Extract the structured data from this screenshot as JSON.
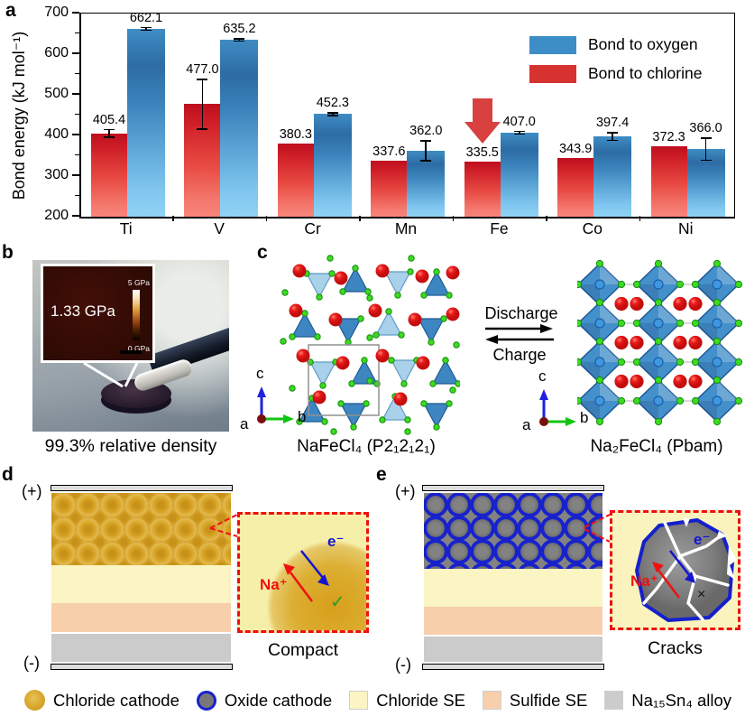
{
  "figure": {
    "panel_letters": {
      "a": "a",
      "b": "b",
      "c": "c",
      "d": "d",
      "e": "e"
    }
  },
  "chart_data": {
    "type": "bar",
    "title": "",
    "ylabel": "Bond energy (kJ mol⁻¹)",
    "ylim": [
      200,
      700
    ],
    "yticks": [
      200,
      300,
      400,
      500,
      600,
      700
    ],
    "categories": [
      "Ti",
      "V",
      "Cr",
      "Mn",
      "Fe",
      "Co",
      "Ni"
    ],
    "series": [
      {
        "name": "Bond to oxygen",
        "color": "#3d8ec6",
        "values": [
          662.1,
          635.2,
          452.3,
          362.0,
          407.0,
          397.4,
          366.0
        ],
        "errors": [
          5,
          5,
          5,
          26,
          5,
          11,
          29
        ]
      },
      {
        "name": "Bond to chlorine",
        "color": "#d63230",
        "values": [
          405.4,
          477.0,
          380.3,
          337.6,
          335.5,
          343.9,
          372.3
        ],
        "errors": [
          11,
          63,
          0,
          0,
          0,
          0,
          0
        ]
      }
    ],
    "annotation": {
      "shape": "down-arrow",
      "category": "Fe",
      "color": "#d94040"
    },
    "legend_position": "top-right",
    "grid": false
  },
  "panel_b": {
    "inset_value": "1.33 GPa",
    "scale_top": "5 GPa",
    "scale_bottom": "0 GPa",
    "caption": "99.3% relative density"
  },
  "panel_c": {
    "left_structure": "NaFeCl₄ (P2₁2₁2₁)",
    "right_structure": "Na₂FeCl₄ (Pbam)",
    "arrow_forward": "Discharge",
    "arrow_backward": "Charge",
    "axes": {
      "a": "a",
      "b": "b",
      "c": "c"
    }
  },
  "panel_d": {
    "positive": "(+)",
    "negative": "(-)",
    "ion": "Na⁺",
    "electron": "e⁻",
    "check": "✓",
    "caption": "Compact"
  },
  "panel_e": {
    "positive": "(+)",
    "negative": "(-)",
    "ion": "Na⁺",
    "electron": "e⁻",
    "cross": "×",
    "caption": "Cracks"
  },
  "bottom_legend": {
    "items": [
      {
        "label": "Chloride cathode",
        "swatch": "circle",
        "color": "#daa828"
      },
      {
        "label": "Oxide cathode",
        "swatch": "ring-circle",
        "color": "#787878",
        "ring_color": "#1822cc"
      },
      {
        "label": "Chloride SE",
        "swatch": "square",
        "color": "#fbf5c3"
      },
      {
        "label": "Sulfide SE",
        "swatch": "square",
        "color": "#f8cfab"
      },
      {
        "label": "Na₁₅Sn₄ alloy",
        "swatch": "square",
        "color": "#cccccc"
      }
    ]
  }
}
